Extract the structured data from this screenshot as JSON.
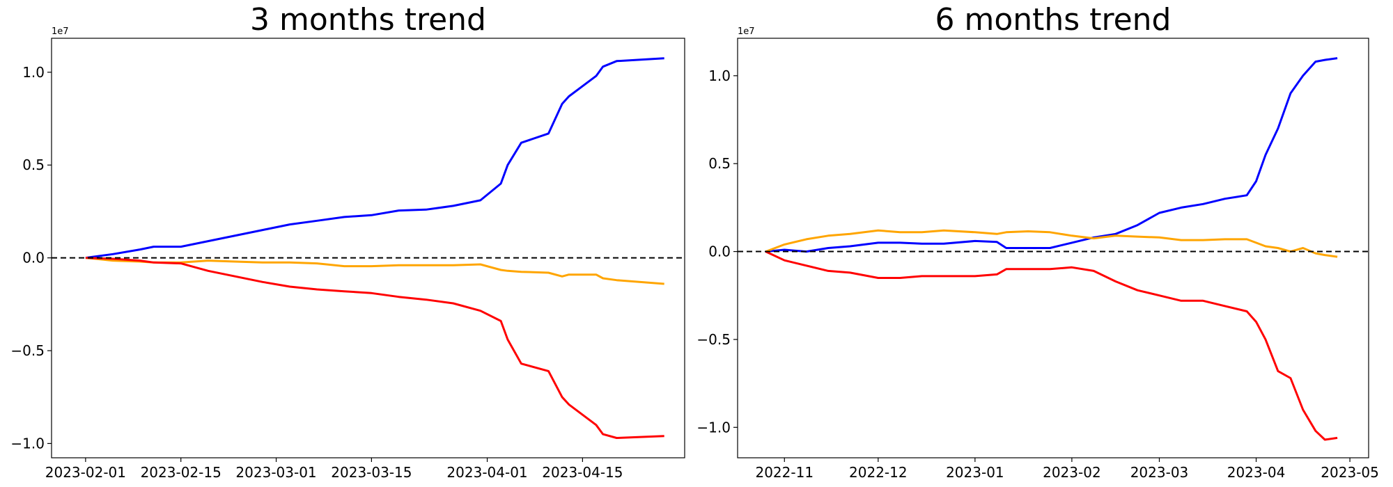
{
  "chart_data": [
    {
      "type": "line",
      "title": "3 months trend",
      "offset_text": "1e7",
      "x": [
        "2023-02-01",
        "2023-02-05",
        "2023-02-09",
        "2023-02-11",
        "2023-02-15",
        "2023-02-19",
        "2023-02-23",
        "2023-02-27",
        "2023-03-03",
        "2023-03-07",
        "2023-03-11",
        "2023-03-15",
        "2023-03-19",
        "2023-03-23",
        "2023-03-27",
        "2023-03-31",
        "2023-04-03",
        "2023-04-04",
        "2023-04-06",
        "2023-04-10",
        "2023-04-12",
        "2023-04-13",
        "2023-04-17",
        "2023-04-18",
        "2023-04-20",
        "2023-04-27"
      ],
      "series": [
        {
          "color": "#0000ff",
          "values": [
            0,
            200000,
            450000,
            600000,
            600000,
            900000,
            1200000,
            1500000,
            1800000,
            2000000,
            2200000,
            2300000,
            2550000,
            2600000,
            2800000,
            3100000,
            4000000,
            5000000,
            6200000,
            6700000,
            8300000,
            8700000,
            9800000,
            10300000,
            10600000,
            10750000
          ]
        },
        {
          "color": "#ffa500",
          "values": [
            0,
            -150000,
            -200000,
            -250000,
            -250000,
            -150000,
            -200000,
            -250000,
            -250000,
            -300000,
            -450000,
            -450000,
            -400000,
            -400000,
            -400000,
            -350000,
            -650000,
            -700000,
            -750000,
            -800000,
            -1000000,
            -900000,
            -900000,
            -1100000,
            -1200000,
            -1400000
          ]
        },
        {
          "color": "#ff0000",
          "values": [
            0,
            -50000,
            -150000,
            -250000,
            -300000,
            -700000,
            -1000000,
            -1300000,
            -1550000,
            -1700000,
            -1800000,
            -1900000,
            -2100000,
            -2250000,
            -2450000,
            -2850000,
            -3400000,
            -4400000,
            -5700000,
            -6100000,
            -7500000,
            -7900000,
            -9000000,
            -9500000,
            -9700000,
            -9600000
          ]
        }
      ],
      "hline": 0,
      "xlim": [
        "2023-01-27",
        "2023-04-30"
      ],
      "xticks": [
        "2023-02-01",
        "2023-02-15",
        "2023-03-01",
        "2023-03-15",
        "2023-04-01",
        "2023-04-15"
      ],
      "ylim": [
        -10770000,
        11830000
      ],
      "yticks": [
        {
          "value": -10000000,
          "label": "−1.0"
        },
        {
          "value": -5000000,
          "label": "−0.5"
        },
        {
          "value": 0,
          "label": "0.0"
        },
        {
          "value": 5000000,
          "label": "0.5"
        },
        {
          "value": 10000000,
          "label": "1.0"
        }
      ]
    },
    {
      "type": "line",
      "title": "6 months trend",
      "offset_text": "1e7",
      "x": [
        "2022-10-26",
        "2022-11-01",
        "2022-11-08",
        "2022-11-15",
        "2022-11-22",
        "2022-12-01",
        "2022-12-08",
        "2022-12-15",
        "2022-12-22",
        "2023-01-01",
        "2023-01-08",
        "2023-01-11",
        "2023-01-18",
        "2023-01-25",
        "2023-02-01",
        "2023-02-08",
        "2023-02-15",
        "2023-02-22",
        "2023-03-01",
        "2023-03-08",
        "2023-03-15",
        "2023-03-22",
        "2023-03-29",
        "2023-04-01",
        "2023-04-04",
        "2023-04-08",
        "2023-04-12",
        "2023-04-16",
        "2023-04-20",
        "2023-04-23",
        "2023-04-27"
      ],
      "series": [
        {
          "color": "#0000ff",
          "values": [
            0,
            100000,
            0,
            200000,
            300000,
            500000,
            500000,
            450000,
            450000,
            600000,
            550000,
            200000,
            200000,
            200000,
            500000,
            800000,
            1000000,
            1500000,
            2200000,
            2500000,
            2700000,
            3000000,
            3200000,
            4000000,
            5500000,
            7000000,
            9000000,
            10000000,
            10800000,
            10900000,
            11000000
          ]
        },
        {
          "color": "#ffa500",
          "values": [
            0,
            400000,
            700000,
            900000,
            1000000,
            1200000,
            1100000,
            1100000,
            1200000,
            1100000,
            1000000,
            1100000,
            1150000,
            1100000,
            900000,
            750000,
            900000,
            850000,
            800000,
            650000,
            650000,
            700000,
            700000,
            500000,
            300000,
            200000,
            0,
            200000,
            -100000,
            -200000,
            -300000
          ]
        },
        {
          "color": "#ff0000",
          "values": [
            0,
            -500000,
            -800000,
            -1100000,
            -1200000,
            -1500000,
            -1500000,
            -1400000,
            -1400000,
            -1400000,
            -1300000,
            -1000000,
            -1000000,
            -1000000,
            -900000,
            -1100000,
            -1700000,
            -2200000,
            -2500000,
            -2800000,
            -2800000,
            -3100000,
            -3400000,
            -4000000,
            -5000000,
            -6800000,
            -7200000,
            -9000000,
            -10200000,
            -10700000,
            -10600000
          ]
        }
      ],
      "hline": 0,
      "xlim": [
        "2022-10-17",
        "2023-05-07"
      ],
      "xticks": [
        "2022-11",
        "2022-12",
        "2023-01",
        "2023-02",
        "2023-03",
        "2023-04",
        "2023-05"
      ],
      "ylim": [
        -11730000,
        12130000
      ],
      "yticks": [
        {
          "value": -10000000,
          "label": "−1.0"
        },
        {
          "value": -5000000,
          "label": "−0.5"
        },
        {
          "value": 0,
          "label": "0.0"
        },
        {
          "value": 5000000,
          "label": "0.5"
        },
        {
          "value": 10000000,
          "label": "1.0"
        }
      ]
    }
  ]
}
